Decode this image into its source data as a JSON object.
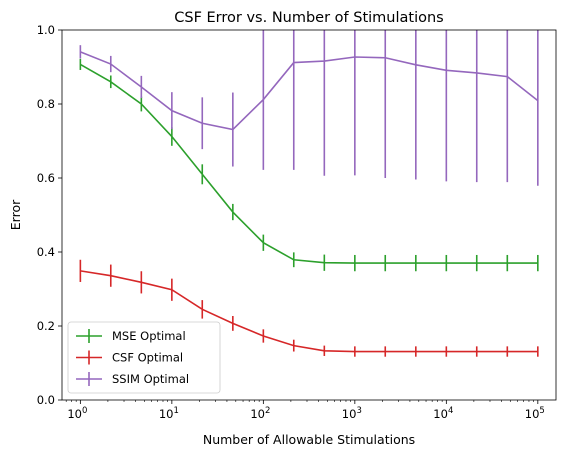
{
  "chart_data": {
    "type": "line",
    "title": "CSF Error vs. Number of Stimulations",
    "xlabel": "Number of Allowable Stimulations",
    "ylabel": "Error",
    "xscale": "log",
    "xlim": [
      0.63,
      158000
    ],
    "ylim": [
      0,
      1
    ],
    "yticks": [
      {
        "value": 0.0,
        "label": "0.0"
      },
      {
        "value": 0.2,
        "label": "0.2"
      },
      {
        "value": 0.4,
        "label": "0.4"
      },
      {
        "value": 0.6,
        "label": "0.6"
      },
      {
        "value": 0.8,
        "label": "0.8"
      },
      {
        "value": 1.0,
        "label": "1.0"
      }
    ],
    "xticks": [
      {
        "value": 1,
        "base": "10",
        "exp": "0"
      },
      {
        "value": 10,
        "base": "10",
        "exp": "1"
      },
      {
        "value": 100,
        "base": "10",
        "exp": "2"
      },
      {
        "value": 1000,
        "base": "10",
        "exp": "3"
      },
      {
        "value": 10000,
        "base": "10",
        "exp": "4"
      },
      {
        "value": 100000,
        "base": "10",
        "exp": "5"
      }
    ],
    "grid": false,
    "legend_position": "bottom-left",
    "x": [
      1,
      2.15,
      4.64,
      10,
      21.5,
      46.4,
      100,
      215,
      464,
      1000,
      2150,
      4640,
      10000,
      21500,
      46400,
      100000
    ],
    "series": [
      {
        "name": "MSE Optimal",
        "color": "#2ca02c",
        "values": [
          0.907,
          0.86,
          0.8,
          0.712,
          0.61,
          0.508,
          0.425,
          0.379,
          0.371,
          0.37,
          0.37,
          0.37,
          0.37,
          0.37,
          0.37,
          0.37
        ],
        "errors": [
          0.015,
          0.017,
          0.02,
          0.025,
          0.027,
          0.022,
          0.022,
          0.02,
          0.022,
          0.022,
          0.022,
          0.022,
          0.022,
          0.022,
          0.022,
          0.022
        ]
      },
      {
        "name": "CSF Optimal",
        "color": "#d62728",
        "values": [
          0.349,
          0.336,
          0.318,
          0.298,
          0.245,
          0.207,
          0.173,
          0.147,
          0.133,
          0.131,
          0.131,
          0.131,
          0.131,
          0.131,
          0.131,
          0.131
        ],
        "errors": [
          0.03,
          0.03,
          0.03,
          0.03,
          0.025,
          0.02,
          0.018,
          0.016,
          0.014,
          0.014,
          0.014,
          0.014,
          0.014,
          0.014,
          0.014,
          0.014
        ]
      },
      {
        "name": "SSIM Optimal",
        "color": "#9467bd",
        "values": [
          0.941,
          0.908,
          0.846,
          0.782,
          0.748,
          0.731,
          0.812,
          0.912,
          0.916,
          0.927,
          0.925,
          0.906,
          0.891,
          0.884,
          0.874,
          0.809
        ],
        "errors": [
          0.018,
          0.022,
          0.03,
          0.05,
          0.07,
          0.1,
          0.19,
          0.29,
          0.31,
          0.32,
          0.325,
          0.31,
          0.3,
          0.295,
          0.285,
          0.23
        ]
      }
    ]
  }
}
